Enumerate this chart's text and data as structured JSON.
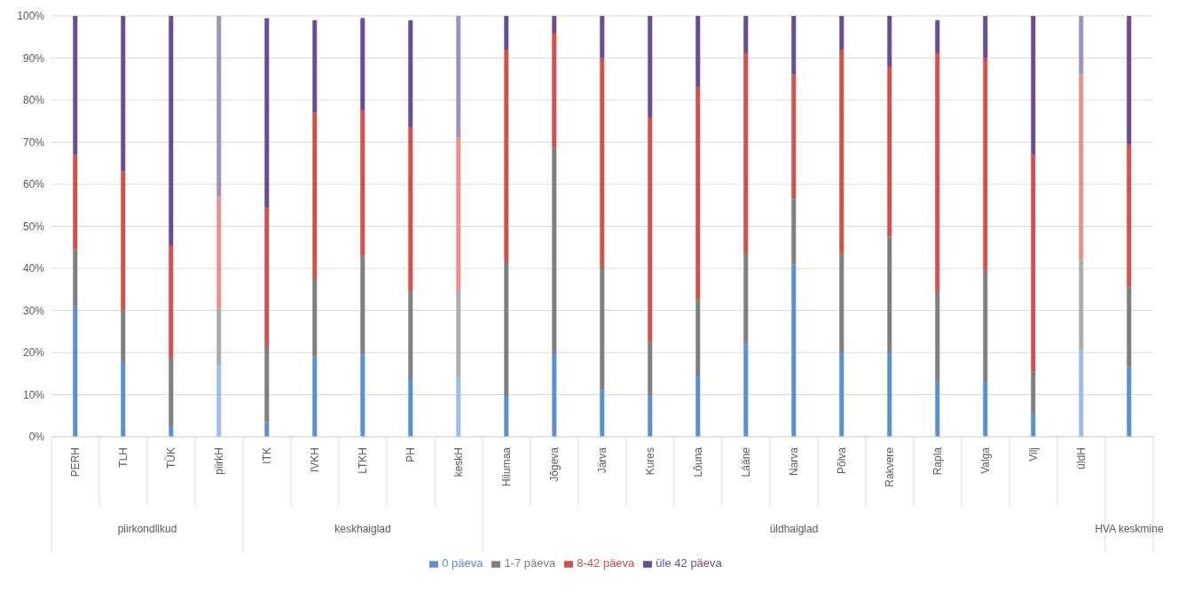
{
  "chart_data": {
    "type": "bar",
    "stacked": true,
    "categories": [
      "PERH",
      "TLH",
      "TÜK",
      "piirkH",
      "ITK",
      "IVKH",
      "LTKH",
      "PH",
      "keskH",
      "Hiiumaa",
      "Jõgeva",
      "Järva",
      "Kures",
      "Lõuna",
      "Lääne",
      "Narva",
      "Põlva",
      "Rakvere",
      "Rapla",
      "Valga",
      "Vilj",
      "üldH",
      null
    ],
    "series": [
      {
        "name": "0 päeva",
        "color": "#5b8fd0",
        "colors": [
          "#5b8fd0",
          "#5b8fd0",
          "#5b8fd0",
          "#9dbde6",
          "#5b8fd0",
          "#5b8fd0",
          "#5b8fd0",
          "#5b8fd0",
          "#9dbde6",
          "#5b8fd0",
          "#5b8fd0",
          "#5b8fd0",
          "#5b8fd0",
          "#5b8fd0",
          "#5b8fd0",
          "#5b8fd0",
          "#5b8fd0",
          "#5b8fd0",
          "#5b8fd0",
          "#5b8fd0",
          "#5b8fd0",
          "#9dbde6",
          "#5b8fd0"
        ],
        "values": [
          31,
          17.5,
          2.5,
          17,
          3.5,
          19,
          19.5,
          13.5,
          14,
          9.5,
          20,
          11,
          9.5,
          14.5,
          22,
          41,
          20,
          20,
          13,
          13,
          5.5,
          20.5,
          16.5
        ]
      },
      {
        "name": "1-7 päeva",
        "color": "#7f7f7f",
        "colors": [
          "#7f7f7f",
          "#7f7f7f",
          "#7f7f7f",
          "#acacac",
          "#7f7f7f",
          "#7f7f7f",
          "#7f7f7f",
          "#7f7f7f",
          "#acacac",
          "#7f7f7f",
          "#7f7f7f",
          "#7f7f7f",
          "#7f7f7f",
          "#7f7f7f",
          "#7f7f7f",
          "#7f7f7f",
          "#7f7f7f",
          "#7f7f7f",
          "#7f7f7f",
          "#7f7f7f",
          "#7f7f7f",
          "#acacac",
          "#7f7f7f"
        ],
        "values": [
          13.5,
          12.5,
          16,
          13.5,
          18,
          18.5,
          23.5,
          21,
          20.5,
          32,
          48.5,
          29,
          13,
          18,
          21.5,
          15.5,
          23.5,
          27.5,
          21.5,
          26.5,
          10,
          21.5,
          19
        ]
      },
      {
        "name": "8-42 päeva",
        "color": "#d0504d",
        "colors": [
          "#d0504d",
          "#d0504d",
          "#d0504d",
          "#e8918f",
          "#d0504d",
          "#d0504d",
          "#d0504d",
          "#d0504d",
          "#e8918f",
          "#d0504d",
          "#d0504d",
          "#d0504d",
          "#d0504d",
          "#d0504d",
          "#d0504d",
          "#d0504d",
          "#d0504d",
          "#d0504d",
          "#d0504d",
          "#d0504d",
          "#d0504d",
          "#e8918f",
          "#d0504d"
        ],
        "values": [
          22.5,
          33,
          27,
          26.5,
          33,
          39.5,
          34.5,
          39,
          36.5,
          50.5,
          27.5,
          50,
          53.5,
          50.5,
          47.5,
          29.5,
          48.5,
          40.5,
          56.5,
          50.5,
          51.5,
          44,
          34
        ]
      },
      {
        "name": "üle 42 päeva",
        "color": "#674d91",
        "colors": [
          "#674d91",
          "#674d91",
          "#674d91",
          "#a092bd",
          "#674d91",
          "#674d91",
          "#674d91",
          "#674d91",
          "#a092bd",
          "#674d91",
          "#674d91",
          "#674d91",
          "#674d91",
          "#674d91",
          "#674d91",
          "#674d91",
          "#674d91",
          "#674d91",
          "#674d91",
          "#674d91",
          "#674d91",
          "#a092bd",
          "#674d91"
        ],
        "values": [
          33,
          37,
          54.5,
          43,
          45,
          22,
          22,
          25.5,
          29,
          8,
          4,
          10,
          24,
          17,
          9,
          14,
          8,
          12,
          8,
          10,
          33,
          14,
          30.5
        ]
      }
    ],
    "annotations": [
      "piirkondlikud",
      "keskhaiglad",
      "üldhaiglad",
      "HVA keskmine"
    ],
    "ylim": [
      0,
      100
    ],
    "yticks": [
      {
        "value": 0,
        "label": "0%"
      },
      {
        "value": 10,
        "label": "10%"
      },
      {
        "value": 20,
        "label": "20%"
      },
      {
        "value": 30,
        "label": "30%"
      },
      {
        "value": 40,
        "label": "40%"
      },
      {
        "value": 50,
        "label": "50%"
      },
      {
        "value": 60,
        "label": "60%"
      },
      {
        "value": 70,
        "label": "70%"
      },
      {
        "value": 80,
        "label": "80%"
      },
      {
        "value": 90,
        "label": "90%"
      },
      {
        "value": 100,
        "label": "100%"
      }
    ],
    "grid": "y",
    "legend": "bottom"
  }
}
